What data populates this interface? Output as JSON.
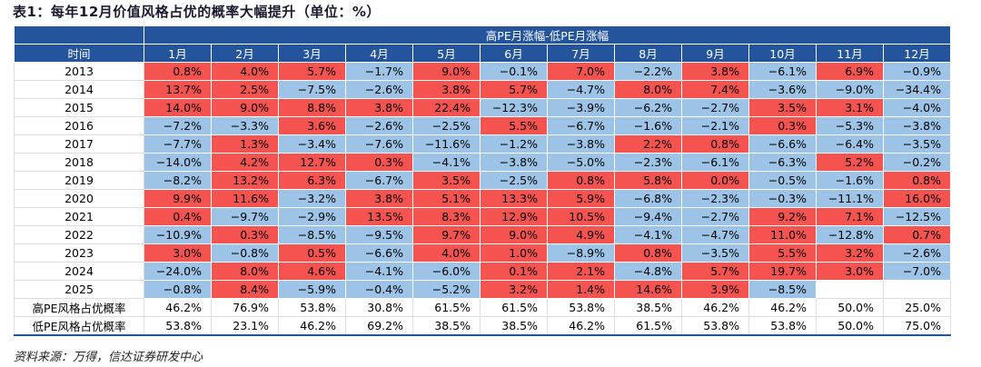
{
  "header": {
    "title": "表1：每年12月价值风格占优的概率大幅提升（单位：%）"
  },
  "table": {
    "band": "高PE月涨幅-低PE月涨幅",
    "columns": [
      "时间",
      "1月",
      "2月",
      "3月",
      "4月",
      "5月",
      "6月",
      "7月",
      "8月",
      "9月",
      "10月",
      "11月",
      "12月"
    ],
    "rows": [
      [
        "2013",
        "0.8%",
        "4.0%",
        "5.7%",
        "−1.7%",
        "9.0%",
        "−0.1%",
        "7.0%",
        "−2.2%",
        "3.8%",
        "−6.1%",
        "6.9%",
        "−0.9%"
      ],
      [
        "2014",
        "13.7%",
        "2.5%",
        "−7.5%",
        "−2.6%",
        "3.8%",
        "5.7%",
        "−4.7%",
        "8.0%",
        "7.4%",
        "−3.6%",
        "−9.0%",
        "−34.4%"
      ],
      [
        "2015",
        "14.0%",
        "9.0%",
        "8.8%",
        "3.8%",
        "22.4%",
        "−12.3%",
        "−3.9%",
        "−6.2%",
        "−2.7%",
        "3.5%",
        "3.1%",
        "−4.0%"
      ],
      [
        "2016",
        "−7.2%",
        "−3.3%",
        "3.6%",
        "−2.6%",
        "−2.5%",
        "5.5%",
        "−6.7%",
        "−1.6%",
        "−2.1%",
        "0.3%",
        "−5.3%",
        "−3.8%"
      ],
      [
        "2017",
        "−7.7%",
        "1.3%",
        "−3.4%",
        "−7.6%",
        "−11.6%",
        "−1.2%",
        "−3.8%",
        "2.2%",
        "0.8%",
        "−6.6%",
        "−6.4%",
        "−3.5%"
      ],
      [
        "2018",
        "−14.0%",
        "4.2%",
        "12.7%",
        "0.3%",
        "−4.1%",
        "−3.8%",
        "−5.0%",
        "−2.3%",
        "−6.1%",
        "−6.3%",
        "5.2%",
        "−0.2%"
      ],
      [
        "2019",
        "−8.2%",
        "13.2%",
        "6.3%",
        "−6.7%",
        "3.5%",
        "−2.5%",
        "0.8%",
        "5.8%",
        "0.0%",
        "−0.5%",
        "−1.6%",
        "0.8%"
      ],
      [
        "2020",
        "9.9%",
        "11.6%",
        "−3.2%",
        "3.8%",
        "5.1%",
        "13.3%",
        "5.9%",
        "−6.8%",
        "−2.3%",
        "−0.3%",
        "−11.1%",
        "16.0%"
      ],
      [
        "2021",
        "0.4%",
        "−9.7%",
        "−2.9%",
        "13.5%",
        "8.3%",
        "12.9%",
        "10.5%",
        "−9.4%",
        "−2.7%",
        "9.2%",
        "7.1%",
        "−12.5%"
      ],
      [
        "2022",
        "−10.9%",
        "0.3%",
        "−8.5%",
        "−9.5%",
        "9.7%",
        "9.0%",
        "4.9%",
        "−4.1%",
        "−4.7%",
        "11.0%",
        "−12.8%",
        "0.7%"
      ],
      [
        "2023",
        "3.0%",
        "−0.8%",
        "0.5%",
        "−6.6%",
        "4.0%",
        "1.0%",
        "−8.9%",
        "0.8%",
        "−3.5%",
        "5.5%",
        "3.2%",
        "−2.6%"
      ],
      [
        "2024",
        "−24.0%",
        "8.0%",
        "4.6%",
        "−4.1%",
        "−6.0%",
        "0.1%",
        "2.1%",
        "−4.8%",
        "5.7%",
        "19.7%",
        "3.0%",
        "−7.0%"
      ],
      [
        "2025",
        "−0.8%",
        "8.4%",
        "−5.9%",
        "−0.4%",
        "−5.2%",
        "3.2%",
        "1.4%",
        "14.6%",
        "3.9%",
        "−8.5%"
      ]
    ],
    "summary_rows": [
      [
        "高PE风格占优概率",
        "46.2%",
        "76.9%",
        "53.8%",
        "30.8%",
        "61.5%",
        "61.5%",
        "53.8%",
        "38.5%",
        "46.2%",
        "46.2%",
        "50.0%",
        "25.0%"
      ],
      [
        "低PE风格占优概率",
        "53.8%",
        "23.1%",
        "46.2%",
        "69.2%",
        "38.5%",
        "38.5%",
        "46.2%",
        "61.5%",
        "53.8%",
        "53.8%",
        "50.0%",
        "75.0%"
      ]
    ]
  },
  "footer": {
    "source": "资料来源：万得，信达证券研发中心"
  }
}
